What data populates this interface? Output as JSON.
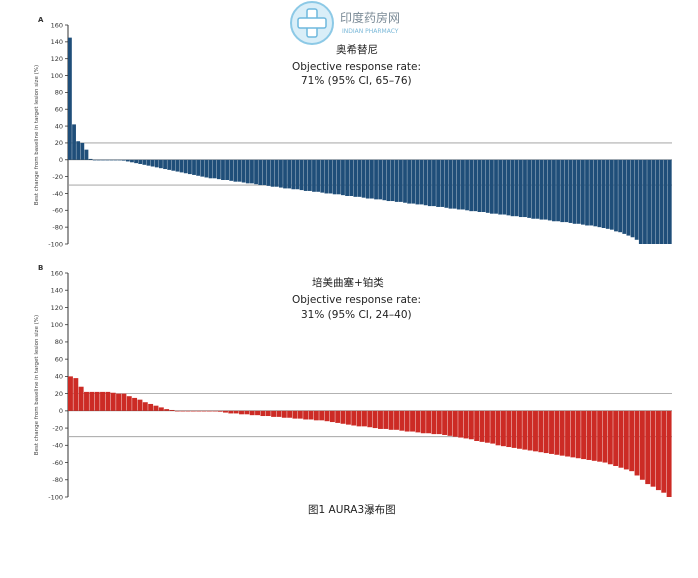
{
  "watermark": {
    "name": "印度药房网",
    "sub": "INDIAN PHARMACY"
  },
  "caption": "图1 AURA3瀑布图",
  "chart_data": [
    {
      "type": "bar",
      "panel": "A",
      "title": "奥希替尼",
      "annotation_line1": "Objective response rate:",
      "annotation_line2": "71% (95% CI, 65–76)",
      "ylabel": "Best change from baseline in target lesion size (%)",
      "ylim": [
        -100,
        160
      ],
      "yticks": [
        160,
        140,
        120,
        100,
        80,
        60,
        40,
        20,
        0,
        -20,
        -40,
        -60,
        -80,
        -100
      ],
      "reference_lines": [
        20,
        -30
      ],
      "color": "#1f4e79",
      "values": [
        145,
        42,
        22,
        20,
        12,
        1,
        0,
        0,
        0,
        0,
        0,
        0,
        0,
        -1,
        -2,
        -3,
        -4,
        -5,
        -6,
        -7,
        -8,
        -9,
        -10,
        -11,
        -12,
        -13,
        -14,
        -15,
        -16,
        -17,
        -18,
        -19,
        -20,
        -21,
        -22,
        -22,
        -23,
        -24,
        -24,
        -25,
        -26,
        -26,
        -27,
        -28,
        -28,
        -29,
        -30,
        -30,
        -31,
        -32,
        -32,
        -33,
        -34,
        -34,
        -35,
        -35,
        -36,
        -37,
        -37,
        -38,
        -38,
        -39,
        -40,
        -40,
        -41,
        -41,
        -42,
        -43,
        -43,
        -44,
        -44,
        -45,
        -46,
        -46,
        -47,
        -47,
        -48,
        -49,
        -49,
        -50,
        -50,
        -51,
        -52,
        -52,
        -53,
        -53,
        -54,
        -55,
        -55,
        -56,
        -56,
        -57,
        -58,
        -58,
        -59,
        -59,
        -60,
        -61,
        -61,
        -62,
        -62,
        -63,
        -64,
        -64,
        -65,
        -65,
        -66,
        -67,
        -67,
        -68,
        -68,
        -69,
        -70,
        -70,
        -71,
        -71,
        -72,
        -73,
        -73,
        -74,
        -74,
        -75,
        -76,
        -76,
        -77,
        -78,
        -78,
        -79,
        -80,
        -81,
        -82,
        -83,
        -85,
        -86,
        -88,
        -90,
        -92,
        -95,
        -100,
        -100,
        -100,
        -100,
        -100,
        -100,
        -100,
        -100
      ]
    },
    {
      "type": "bar",
      "panel": "B",
      "title": "培美曲塞+铂类",
      "annotation_line1": "Objective response rate:",
      "annotation_line2": "31% (95% CI, 24–40)",
      "ylabel": "Best change from baseline in target lesion size (%)",
      "ylim": [
        -100,
        160
      ],
      "yticks": [
        160,
        140,
        120,
        100,
        80,
        60,
        40,
        20,
        0,
        -20,
        -40,
        -60,
        -80,
        -100
      ],
      "reference_lines": [
        20,
        -30
      ],
      "color": "#cc2b25",
      "values": [
        40,
        38,
        28,
        22,
        22,
        22,
        22,
        22,
        21,
        20,
        20,
        17,
        15,
        13,
        10,
        8,
        6,
        4,
        2,
        1,
        0,
        0,
        0,
        0,
        0,
        0,
        0,
        0,
        -1,
        -2,
        -3,
        -3,
        -4,
        -4,
        -5,
        -5,
        -6,
        -6,
        -7,
        -7,
        -8,
        -8,
        -9,
        -9,
        -10,
        -10,
        -11,
        -11,
        -12,
        -13,
        -14,
        -15,
        -16,
        -17,
        -18,
        -18,
        -19,
        -20,
        -21,
        -21,
        -22,
        -22,
        -23,
        -24,
        -24,
        -25,
        -26,
        -26,
        -27,
        -27,
        -28,
        -29,
        -30,
        -31,
        -32,
        -33,
        -35,
        -36,
        -37,
        -38,
        -40,
        -41,
        -42,
        -43,
        -44,
        -45,
        -46,
        -47,
        -48,
        -49,
        -50,
        -51,
        -52,
        -53,
        -54,
        -55,
        -56,
        -57,
        -58,
        -59,
        -60,
        -62,
        -64,
        -66,
        -68,
        -70,
        -75,
        -80,
        -85,
        -88,
        -92,
        -95,
        -100
      ]
    }
  ]
}
